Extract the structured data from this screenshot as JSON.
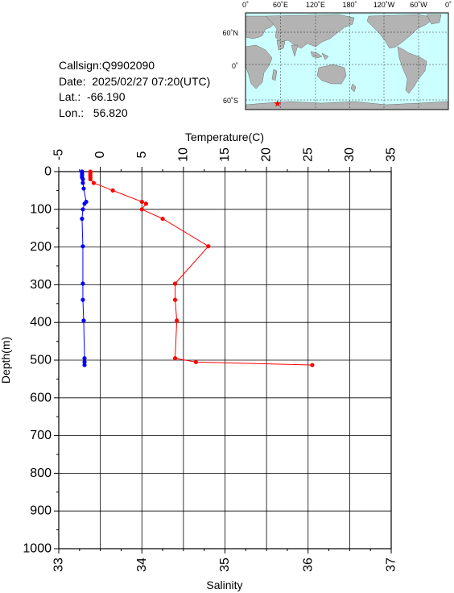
{
  "info": {
    "callsign": "Callsign:Q9902090",
    "date": "Date:  2025/02/27 07:20(UTC)",
    "lat": "Lat.:  -66.190",
    "lon": "Lon.:   56.820"
  },
  "map": {
    "lon_labels": [
      "0˚",
      "60˚E",
      "120˚E",
      "180˚",
      "120˚W",
      "60˚W",
      "0˚"
    ],
    "lat_labels": [
      "60˚N",
      "0˚",
      "60˚S"
    ],
    "ocean_color": "#ccffff",
    "land_color": "#b3b3b3",
    "marker": {
      "lat": -66.19,
      "lon": 56.82,
      "color": "#ff0000",
      "symbol": "star"
    }
  },
  "chart_data": {
    "type": "line",
    "title": "",
    "top_axis": {
      "label": "Temperature(C)",
      "range": [
        -5,
        35
      ],
      "ticks": [
        -5,
        0,
        5,
        10,
        15,
        20,
        25,
        30,
        35
      ]
    },
    "bottom_axis": {
      "label": "Salinity",
      "range": [
        33,
        37
      ],
      "ticks": [
        33,
        34,
        35,
        36,
        37
      ]
    },
    "y_axis": {
      "label": "Depth(m)",
      "range": [
        0,
        1000
      ],
      "inverted": true,
      "ticks": [
        0,
        100,
        200,
        300,
        400,
        500,
        600,
        700,
        800,
        900,
        1000
      ]
    },
    "grid": true,
    "series": [
      {
        "axis": "temperature",
        "color": "#ff0000",
        "points": [
          [
            -1.2,
            0
          ],
          [
            -1.2,
            5
          ],
          [
            -1.2,
            10
          ],
          [
            -1.2,
            15
          ],
          [
            -1.2,
            20
          ],
          [
            -0.8,
            30
          ],
          [
            1.5,
            50
          ],
          [
            5.0,
            80
          ],
          [
            5.5,
            85
          ],
          [
            5.0,
            100
          ],
          [
            7.5,
            125
          ],
          [
            13.0,
            198
          ],
          [
            9.0,
            297
          ],
          [
            9.0,
            340
          ],
          [
            9.2,
            395
          ],
          [
            9.0,
            495
          ],
          [
            11.5,
            505
          ],
          [
            25.5,
            513
          ]
        ]
      },
      {
        "axis": "salinity",
        "color": "#0000ff",
        "points": [
          [
            33.28,
            0
          ],
          [
            33.28,
            5
          ],
          [
            33.28,
            10
          ],
          [
            33.28,
            15
          ],
          [
            33.29,
            20
          ],
          [
            33.29,
            30
          ],
          [
            33.3,
            45
          ],
          [
            33.33,
            80
          ],
          [
            33.31,
            85
          ],
          [
            33.29,
            100
          ],
          [
            33.28,
            125
          ],
          [
            33.29,
            198
          ],
          [
            33.29,
            297
          ],
          [
            33.29,
            340
          ],
          [
            33.3,
            395
          ],
          [
            33.31,
            495
          ],
          [
            33.31,
            505
          ],
          [
            33.31,
            513
          ]
        ]
      }
    ]
  }
}
